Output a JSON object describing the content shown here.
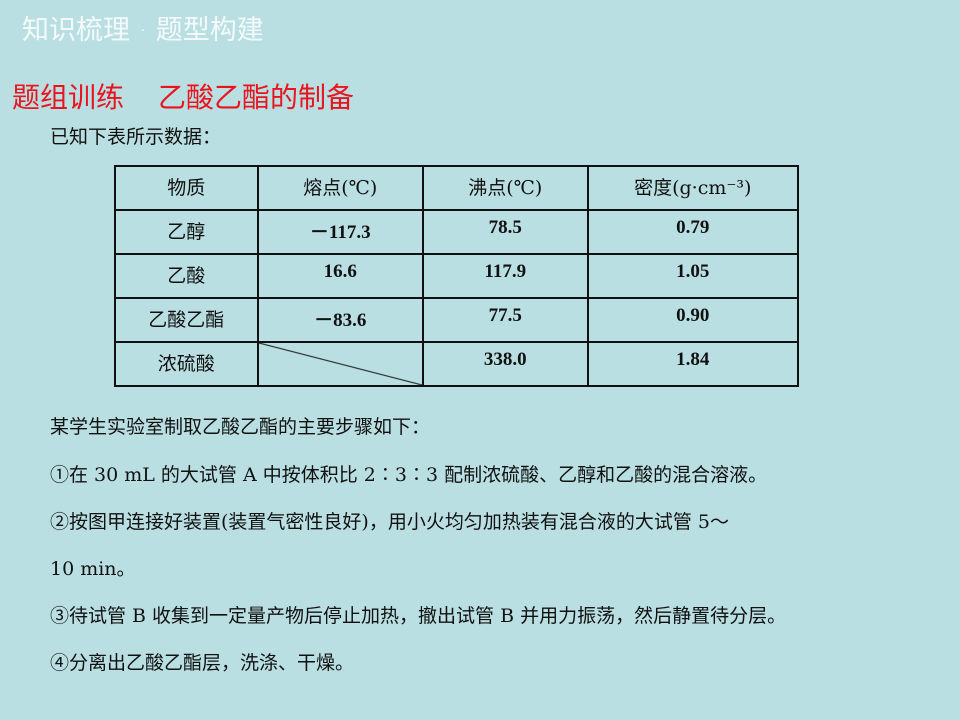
{
  "header": "知识梳理 · 题型构建",
  "section": {
    "label": "题组训练",
    "title": "乙酸乙酯的制备"
  },
  "intro": "已知下表所示数据：",
  "table": {
    "headers": [
      "物质",
      "熔点(℃)",
      "沸点(℃)",
      "密度(g·cm⁻³)"
    ],
    "rows": [
      [
        "乙醇",
        "－117.3",
        "78.5",
        "0.79"
      ],
      [
        "乙酸",
        "16.6",
        "117.9",
        "1.05"
      ],
      [
        "乙酸乙酯",
        "－83.6",
        "77.5",
        "0.90"
      ],
      [
        "浓硫酸",
        "",
        "338.0",
        "1.84"
      ]
    ]
  },
  "steps_intro": "某学生实验室制取乙酸乙酯的主要步骤如下：",
  "steps": [
    "①在 30 mL 的大试管 A 中按体积比 2∶3∶3 配制浓硫酸、乙醇和乙酸的混合溶液。",
    "②按图甲连接好装置(装置气密性良好)，用小火均匀加热装有混合液的大试管  5～",
    "10 min。",
    "③待试管 B 收集到一定量产物后停止加热，撤出试管 B 并用力振荡，然后静置待分层。",
    "④分离出乙酸乙酯层，洗涤、干燥。"
  ]
}
